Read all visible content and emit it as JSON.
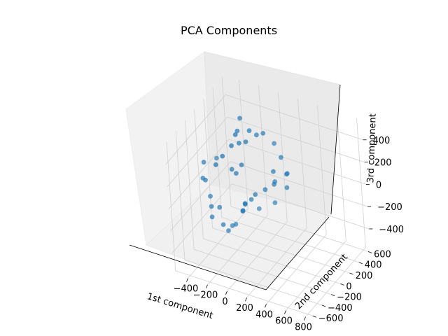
{
  "chart_data": {
    "type": "scatter3d",
    "title": "PCA Components",
    "xlabel": "1st component",
    "ylabel": "2nd component",
    "zlabel": "3rd component",
    "xlim": [
      -550,
      850
    ],
    "ylim": [
      -650,
      650
    ],
    "zlim": [
      -580,
      580
    ],
    "xticks": [
      -400,
      -200,
      0,
      200,
      400,
      600,
      800
    ],
    "yticks": [
      -600,
      -400,
      -200,
      0,
      200,
      400,
      600
    ],
    "zticks": [
      -400,
      -200,
      0,
      200,
      400
    ],
    "grid": true,
    "marker_color": "#1f77b4",
    "pane_color": "#f2f2f2",
    "points": [
      [
        -447,
        -81,
        176
      ],
      [
        -426,
        141,
        111
      ],
      [
        -447,
        -72,
        11
      ],
      [
        -481,
        -56,
        11
      ],
      [
        -422,
        -45,
        -140
      ],
      [
        -422,
        -36,
        -236
      ],
      [
        -416,
        -48,
        -323
      ],
      [
        -376,
        36,
        -266
      ],
      [
        -355,
        48,
        -421
      ],
      [
        -351,
        136,
        -516
      ],
      [
        -314,
        219,
        -488
      ],
      [
        -337,
        194,
        -495
      ],
      [
        -302,
        354,
        -432
      ],
      [
        -183,
        458,
        -425
      ],
      [
        -37,
        504,
        -351
      ],
      [
        77,
        544,
        -202
      ],
      [
        77,
        555,
        -87
      ],
      [
        77,
        569,
        -87
      ],
      [
        61,
        497,
        88
      ],
      [
        -18,
        531,
        174
      ],
      [
        -55,
        394,
        320
      ],
      [
        -78,
        304,
        342
      ],
      [
        -113,
        232,
        405
      ],
      [
        -173,
        175,
        527
      ],
      [
        -206,
        170,
        405
      ],
      [
        -180,
        77,
        424
      ],
      [
        -113,
        146,
        346
      ],
      [
        -164,
        107,
        338
      ],
      [
        -190,
        2,
        358
      ],
      [
        -262,
        -54,
        270
      ],
      [
        -306,
        -115,
        210
      ],
      [
        -169,
        138,
        126
      ],
      [
        -245,
        84,
        91
      ],
      [
        -210,
        98,
        58
      ],
      [
        -113,
        -2,
        -200
      ],
      [
        -163,
        145,
        -229
      ],
      [
        -163,
        145,
        -222
      ],
      [
        -158,
        266,
        -242
      ],
      [
        -95,
        231,
        -163
      ],
      [
        -36,
        323,
        -146
      ],
      [
        39,
        365,
        -97
      ],
      [
        6,
        447,
        -122
      ],
      [
        39,
        365,
        18
      ]
    ]
  }
}
